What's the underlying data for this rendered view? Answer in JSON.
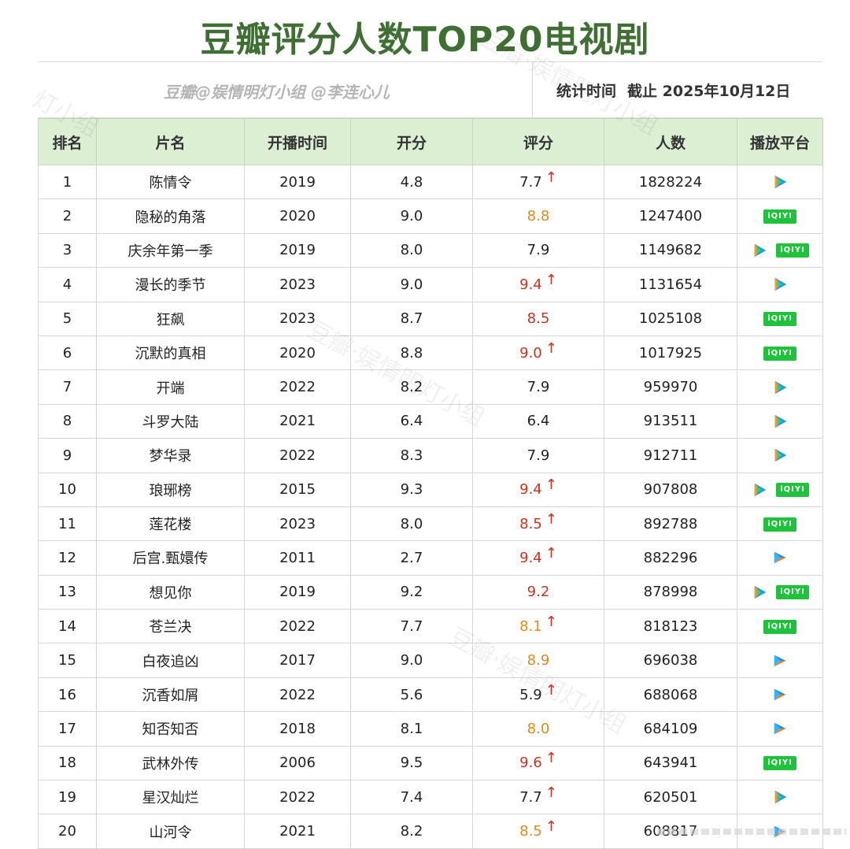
{
  "title": "豆瓣评分人数TOP20电视剧",
  "source": "豆瓣@娱情明灯小组 @李连心儿",
  "stat_label": "统计时间",
  "stat_value": "截止 2025年10月12日",
  "columns": [
    "排名",
    "片名",
    "开播时间",
    "开分",
    "评分",
    "人数",
    "播放平台"
  ],
  "icons": {
    "tencent": "tencent-video-icon",
    "iqiyi": "iqiyi-icon",
    "youku": "youku-icon",
    "up": "up-arrow-icon"
  },
  "iqiyi_text": "iQIYI",
  "arrow_glyph": "↑",
  "colors": {
    "header_bg": "#dcefd3",
    "title": "#3f6f33",
    "score_orange": "#e08a1e",
    "score_red": "#c8341f",
    "iqiyi_green": "#1fc23b"
  },
  "rows": [
    {
      "rank": "1",
      "name": "陈情令",
      "year": "2019",
      "open": "4.8",
      "score": "7.7",
      "count": "1828224",
      "up": true,
      "tone": "",
      "platforms": [
        "tencent"
      ]
    },
    {
      "rank": "2",
      "name": "隐秘的角落",
      "year": "2020",
      "open": "9.0",
      "score": "8.8",
      "count": "1247400",
      "up": false,
      "tone": "orange",
      "platforms": [
        "iqiyi"
      ]
    },
    {
      "rank": "3",
      "name": "庆余年第一季",
      "year": "2019",
      "open": "8.0",
      "score": "7.9",
      "count": "1149682",
      "up": false,
      "tone": "",
      "platforms": [
        "tencent",
        "iqiyi"
      ]
    },
    {
      "rank": "4",
      "name": "漫长的季节",
      "year": "2023",
      "open": "9.0",
      "score": "9.4",
      "count": "1131654",
      "up": true,
      "tone": "red",
      "platforms": [
        "tencent"
      ]
    },
    {
      "rank": "5",
      "name": "狂飙",
      "year": "2023",
      "open": "8.7",
      "score": "8.5",
      "count": "1025108",
      "up": false,
      "tone": "red",
      "platforms": [
        "iqiyi"
      ]
    },
    {
      "rank": "6",
      "name": "沉默的真相",
      "year": "2020",
      "open": "8.8",
      "score": "9.0",
      "count": "1017925",
      "up": true,
      "tone": "red",
      "platforms": [
        "iqiyi"
      ]
    },
    {
      "rank": "7",
      "name": "开端",
      "year": "2022",
      "open": "8.2",
      "score": "7.9",
      "count": "959970",
      "up": false,
      "tone": "",
      "platforms": [
        "tencent"
      ]
    },
    {
      "rank": "8",
      "name": "斗罗大陆",
      "year": "2021",
      "open": "6.4",
      "score": "6.4",
      "count": "913511",
      "up": false,
      "tone": "",
      "platforms": [
        "tencent"
      ]
    },
    {
      "rank": "9",
      "name": "梦华录",
      "year": "2022",
      "open": "8.3",
      "score": "7.9",
      "count": "912711",
      "up": false,
      "tone": "",
      "platforms": [
        "tencent"
      ]
    },
    {
      "rank": "10",
      "name": "琅琊榜",
      "year": "2015",
      "open": "9.3",
      "score": "9.4",
      "count": "907808",
      "up": true,
      "tone": "red",
      "platforms": [
        "tencent",
        "iqiyi"
      ]
    },
    {
      "rank": "11",
      "name": "莲花楼",
      "year": "2023",
      "open": "8.0",
      "score": "8.5",
      "count": "892788",
      "up": true,
      "tone": "red",
      "platforms": [
        "iqiyi"
      ]
    },
    {
      "rank": "12",
      "name": "后宫.甄嬛传",
      "year": "2011",
      "open": "2.7",
      "score": "9.4",
      "count": "882296",
      "up": true,
      "tone": "red",
      "platforms": [
        "youku"
      ]
    },
    {
      "rank": "13",
      "name": "想见你",
      "year": "2019",
      "open": "9.2",
      "score": "9.2",
      "count": "878998",
      "up": false,
      "tone": "red",
      "platforms": [
        "tencent",
        "iqiyi"
      ]
    },
    {
      "rank": "14",
      "name": "苍兰决",
      "year": "2022",
      "open": "7.7",
      "score": "8.1",
      "count": "818123",
      "up": true,
      "tone": "orange",
      "platforms": [
        "iqiyi"
      ]
    },
    {
      "rank": "15",
      "name": "白夜追凶",
      "year": "2017",
      "open": "9.0",
      "score": "8.9",
      "count": "696038",
      "up": false,
      "tone": "orange",
      "platforms": [
        "youku"
      ]
    },
    {
      "rank": "16",
      "name": "沉香如屑",
      "year": "2022",
      "open": "5.6",
      "score": "5.9",
      "count": "688068",
      "up": true,
      "tone": "",
      "platforms": [
        "youku"
      ]
    },
    {
      "rank": "17",
      "name": "知否知否",
      "year": "2018",
      "open": "8.1",
      "score": "8.0",
      "count": "684109",
      "up": false,
      "tone": "orange",
      "platforms": [
        "youku"
      ]
    },
    {
      "rank": "18",
      "name": "武林外传",
      "year": "2006",
      "open": "9.5",
      "score": "9.6",
      "count": "643941",
      "up": true,
      "tone": "red",
      "platforms": [
        "iqiyi"
      ]
    },
    {
      "rank": "19",
      "name": "星汉灿烂",
      "year": "2022",
      "open": "7.4",
      "score": "7.7",
      "count": "620501",
      "up": true,
      "tone": "",
      "platforms": [
        "tencent"
      ]
    },
    {
      "rank": "20",
      "name": "山河令",
      "year": "2021",
      "open": "8.2",
      "score": "8.5",
      "count": "608817",
      "up": true,
      "tone": "orange",
      "platforms": [
        "youku"
      ]
    }
  ]
}
